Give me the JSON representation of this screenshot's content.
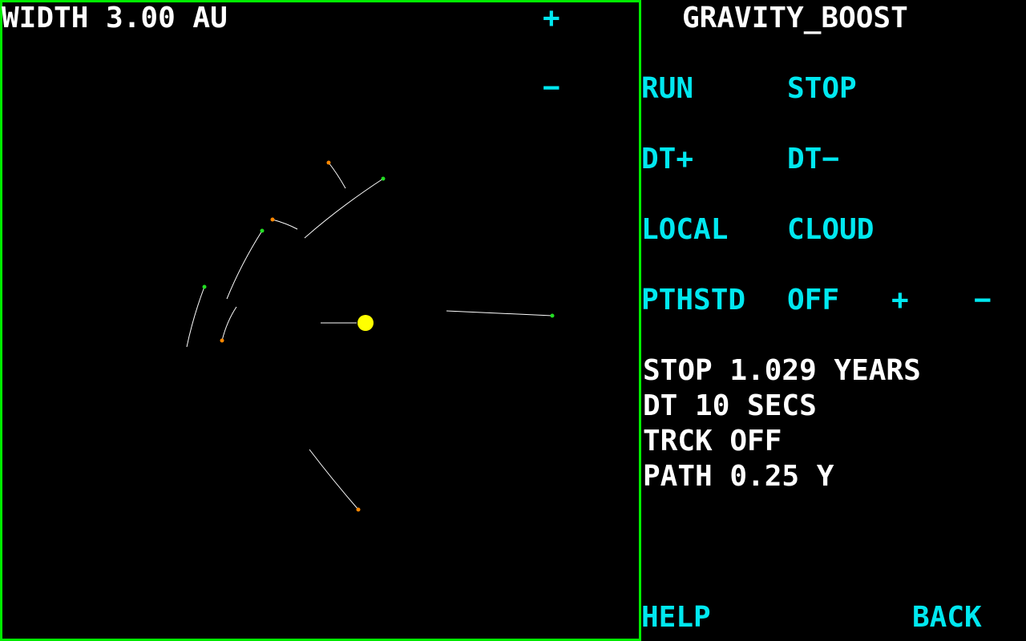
{
  "viewport": {
    "width_label": "WIDTH 3.00 AU",
    "zoom_in_label": "+",
    "zoom_out_label": "−",
    "border_color": "#00ee00"
  },
  "sim": {
    "sun_color": "#ffff00",
    "trail_color": "#ffffff",
    "body_colors": {
      "green": "#22dd22",
      "orange": "#ff8800"
    }
  },
  "panel": {
    "title": "GRAVITY_BOOST",
    "run_label": "RUN",
    "stop_label": "STOP",
    "dt_plus_label": "DT+",
    "dt_minus_label": "DT−",
    "local_label": "LOCAL",
    "cloud_label": "CLOUD",
    "pthstd_label": "PTHSTD",
    "pthstd_value": "OFF",
    "pthstd_plus_label": "+",
    "pthstd_minus_label": "−",
    "status": {
      "stop_line": "STOP 1.029 YEARS",
      "dt_line": "DT   10 SECS",
      "trck_line": "TRCK OFF",
      "path_line": "PATH 0.25 Y"
    },
    "help_label": "HELP",
    "back_label": "BACK",
    "accent_color": "#00e8f0"
  }
}
